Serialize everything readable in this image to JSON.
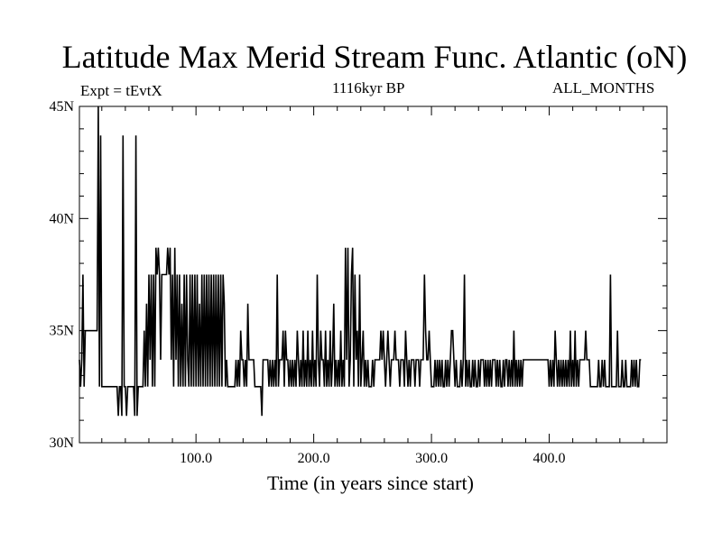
{
  "chart_data": {
    "type": "line",
    "title": "Latitude Max Merid Stream Func. Atlantic (oN)",
    "subtitle": "1116kyr BP",
    "left_annotation": "Expt = tEvtX",
    "right_annotation": "ALL_MONTHS",
    "xlabel": "Time (in years since start)",
    "ylabel": "",
    "xlim": [
      1,
      500
    ],
    "ylim": [
      30,
      45
    ],
    "x_ticks": [
      100,
      200,
      300,
      400
    ],
    "x_tick_labels": [
      "100.0",
      "200.0",
      "300.0",
      "400.0"
    ],
    "y_ticks": [
      30,
      35,
      40,
      45
    ],
    "y_tick_labels": [
      "30N",
      "35N",
      "40N",
      "45N"
    ],
    "grid": false,
    "legend": "none",
    "line_color": "#000000",
    "series": [
      {
        "x_start": 1,
        "x_step": 1,
        "values": [
          33.7,
          32.5,
          33.7,
          37.5,
          32.5,
          35,
          35,
          35,
          35,
          35,
          35,
          35,
          35,
          35,
          35,
          35,
          45,
          32.5,
          43.7,
          32.5,
          32.5,
          32.5,
          32.5,
          32.5,
          32.5,
          32.5,
          32.5,
          32.5,
          32.5,
          32.5,
          32.5,
          32.5,
          32.5,
          31.2,
          32.5,
          32.5,
          31.2,
          43.7,
          32.5,
          32.5,
          31.2,
          32.5,
          32.5,
          32.5,
          32.5,
          32.5,
          32.5,
          31.2,
          43.7,
          31.2,
          32.5,
          32.5,
          32.5,
          32.5,
          32.5,
          35,
          32.5,
          36.2,
          32.5,
          37.5,
          33.7,
          37.5,
          32.5,
          37.5,
          32.5,
          38.7,
          37.5,
          38.7,
          37.5,
          33.7,
          37.5,
          37.5,
          37.5,
          37.5,
          37.5,
          38.7,
          37.5,
          38.7,
          33.7,
          37.5,
          32.5,
          38.7,
          33.7,
          37.5,
          32.5,
          37.5,
          32.5,
          36.2,
          32.5,
          37.5,
          32.5,
          37.5,
          33.7,
          32.5,
          37.5,
          32.5,
          37.5,
          32.5,
          37.5,
          32.5,
          37.5,
          32.5,
          36.2,
          32.5,
          37.5,
          32.5,
          37.5,
          32.5,
          37.5,
          32.5,
          37.5,
          32.5,
          37.5,
          32.5,
          37.5,
          32.5,
          37.5,
          32.5,
          37.5,
          32.5,
          37.5,
          32.5,
          37.5,
          36.2,
          32.5,
          33.7,
          32.5,
          32.5,
          32.5,
          32.5,
          32.5,
          32.5,
          32.5,
          33.7,
          32.5,
          33.7,
          32.5,
          35,
          33.7,
          33.7,
          32.5,
          33.7,
          32.5,
          36.2,
          33.7,
          33.7,
          33.7,
          33.7,
          33.7,
          32.5,
          32.5,
          32.5,
          32.5,
          32.5,
          32.5,
          31.2,
          33.7,
          33.7,
          33.7,
          33.7,
          33.7,
          32.5,
          33.7,
          32.5,
          33.7,
          32.5,
          33.7,
          32.5,
          37.5,
          32.5,
          33.7,
          33.7,
          33.7,
          35,
          32.5,
          35,
          33.7,
          33.7,
          32.5,
          33.7,
          32.5,
          33.7,
          32.5,
          33.7,
          32.5,
          35,
          33.7,
          32.5,
          33.7,
          32.5,
          35,
          32.5,
          33.7,
          32.5,
          35,
          32.5,
          33.7,
          32.5,
          35,
          32.5,
          33.7,
          32.5,
          37.5,
          33.7,
          32.5,
          35,
          33.7,
          33.7,
          32.5,
          35,
          32.5,
          33.7,
          32.5,
          35,
          32.5,
          33.7,
          36.2,
          32.5,
          33.7,
          32.5,
          33.7,
          32.5,
          35,
          32.5,
          33.7,
          32.5,
          38.7,
          33.7,
          38.7,
          32.5,
          33.7,
          37.5,
          38.7,
          32.5,
          37.5,
          33.7,
          35,
          32.5,
          37.5,
          32.5,
          33.7,
          35,
          32.5,
          33.7,
          32.5,
          33.7,
          32.5,
          32.5,
          32.5,
          33.7,
          32.5,
          33.7,
          33.7,
          33.7,
          33.7,
          33.7,
          35,
          33.7,
          35,
          33.7,
          32.5,
          33.7,
          35,
          33.7,
          32.5,
          33.7,
          33.7,
          33.7,
          35,
          33.7,
          33.7,
          33.7,
          32.5,
          33.7,
          33.7,
          33.7,
          32.5,
          35,
          33.7,
          32.5,
          33.7,
          32.5,
          33.7,
          33.7,
          33.7,
          32.5,
          33.7,
          33.7,
          33.7,
          32.5,
          33.7,
          33.7,
          33.7,
          37.5,
          35,
          33.7,
          33.7,
          35,
          33.7,
          32.5,
          32.5,
          32.5,
          33.7,
          32.5,
          33.7,
          32.5,
          33.7,
          32.5,
          33.7,
          32.5,
          32.5,
          33.7,
          32.5,
          33.7,
          32.5,
          33.7,
          35,
          35,
          33.7,
          32.5,
          33.7,
          32.5,
          32.5,
          32.5,
          33.7,
          32.5,
          33.7,
          37.5,
          32.5,
          33.7,
          32.5,
          33.7,
          32.5,
          32.5,
          33.7,
          32.5,
          33.7,
          32.5,
          32.5,
          33.7,
          32.5,
          33.7,
          33.7,
          33.7,
          32.5,
          33.7,
          32.5,
          33.7,
          32.5,
          33.7,
          32.5,
          33.7,
          33.7,
          33.7,
          32.5,
          33.7,
          32.5,
          33.7,
          32.5,
          32.5,
          33.7,
          32.5,
          33.7,
          33.7,
          32.5,
          33.7,
          32.5,
          33.7,
          32.5,
          35,
          32.5,
          33.7,
          32.5,
          33.7,
          32.5,
          33.7,
          32.5,
          33.7,
          33.7,
          33.7,
          33.7,
          33.7,
          33.7,
          33.7,
          33.7,
          33.7,
          33.7,
          33.7,
          33.7,
          33.7,
          33.7,
          33.7,
          33.7,
          33.7,
          33.7,
          33.7,
          33.7,
          33.7,
          33.7,
          32.5,
          33.7,
          32.5,
          33.7,
          32.5,
          35,
          33.7,
          32.5,
          33.7,
          32.5,
          33.7,
          32.5,
          33.7,
          32.5,
          33.7,
          32.5,
          33.7,
          32.5,
          35,
          32.5,
          33.7,
          32.5,
          35,
          32.5,
          33.7,
          32.5,
          33.7,
          33.7,
          33.7,
          33.7,
          33.7,
          35,
          33.7,
          33.7,
          33.7,
          32.5,
          32.5,
          32.5,
          32.5,
          32.5,
          32.5,
          32.5,
          33.7,
          32.5,
          32.5,
          33.7,
          32.5,
          33.7,
          32.5,
          32.5,
          32.5,
          32.5,
          37.5,
          32.5,
          32.5,
          32.5,
          32.5,
          32.5,
          35,
          32.5,
          32.5,
          32.5,
          33.7,
          32.5,
          32.5,
          33.7,
          32.5,
          32.5,
          32.5,
          32.5,
          33.7,
          32.5,
          33.7,
          32.5,
          33.7,
          32.5,
          32.5,
          33.7,
          33.7
        ]
      }
    ]
  }
}
